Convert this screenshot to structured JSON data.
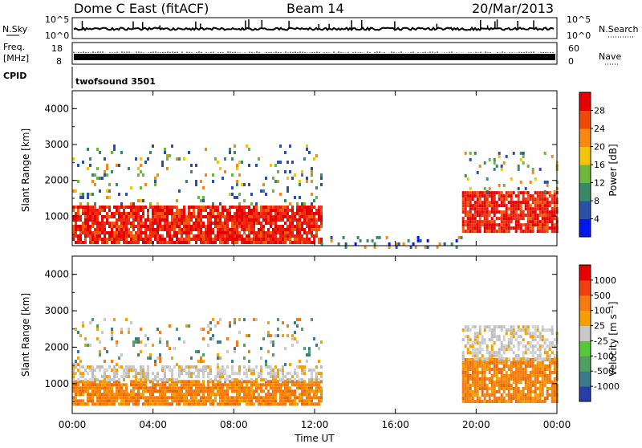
{
  "header": {
    "title": "Dome C East (fitACF)",
    "beam": "Beam 14",
    "date": "20/Mar/2013"
  },
  "top_panels": {
    "nsky_label": "N.Sky",
    "nsky_ticks": [
      "10^5",
      "10^0"
    ],
    "nsearch_label": "N.Search",
    "nsearch_ticks": [
      "10^5",
      "10^0"
    ],
    "freq_label_1": "Freq.",
    "freq_label_2": "[MHz]",
    "freq_ticks": [
      "18",
      "8"
    ],
    "nave_label": "Nave",
    "nave_ticks": [
      "60",
      "0"
    ],
    "cpid_label": "CPID",
    "cpid_value": "twofsound 3501"
  },
  "chart_data": [
    {
      "type": "heatmap",
      "title": "",
      "xlabel": "Time UT",
      "ylabel": "Slant Range [km]",
      "xlim": [
        0,
        24
      ],
      "ylim": [
        180,
        4500
      ],
      "x_ticks": [
        "00:00",
        "04:00",
        "08:00",
        "12:00",
        "16:00",
        "20:00",
        "00:00"
      ],
      "y_ticks": [
        "1000",
        "2000",
        "3000",
        "4000"
      ],
      "colorbar": {
        "label": "Power [dB]",
        "ticks": [
          "4",
          "8",
          "12",
          "16",
          "20",
          "24",
          "28"
        ],
        "colors": [
          "#0018f0",
          "#2a50a8",
          "#3a8a6a",
          "#6bb83a",
          "#f2c40a",
          "#f68a10",
          "#f04a0a",
          "#e80000"
        ]
      },
      "echo_regions": [
        {
          "t0": 0,
          "t1": 12.3,
          "r0": 300,
          "r1": 1300,
          "level": "strong"
        },
        {
          "t0": 0,
          "t1": 12.3,
          "r0": 1300,
          "r1": 3000,
          "level": "scattered"
        },
        {
          "t0": 12.3,
          "t1": 19.3,
          "r0": 180,
          "r1": 450,
          "level": "sparse"
        },
        {
          "t0": 19.3,
          "t1": 24,
          "r0": 600,
          "r1": 1700,
          "level": "strong"
        },
        {
          "t0": 19.3,
          "t1": 24,
          "r0": 1700,
          "r1": 2800,
          "level": "scattered"
        }
      ]
    },
    {
      "type": "heatmap",
      "title": "",
      "xlabel": "Time UT",
      "ylabel": "Slant Range [km]",
      "xlim": [
        0,
        24
      ],
      "ylim": [
        180,
        4500
      ],
      "x_ticks": [
        "00:00",
        "04:00",
        "08:00",
        "12:00",
        "16:00",
        "20:00",
        "00:00"
      ],
      "y_ticks": [
        "1000",
        "2000",
        "3000",
        "4000"
      ],
      "colorbar": {
        "label": "Velocity [m s⁻¹]",
        "ticks": [
          "1000",
          "500",
          "100",
          "25",
          "-25",
          "-100",
          "-500",
          "-1000"
        ],
        "colors": [
          "#2a3ea8",
          "#3a7a8a",
          "#4fa060",
          "#56c83a",
          "#c8c8c8",
          "#f5a000",
          "#f57a10",
          "#f04010",
          "#e80000"
        ]
      },
      "echo_regions": [
        {
          "t0": 0,
          "t1": 12.3,
          "r0": 400,
          "r1": 1100,
          "level": "orange"
        },
        {
          "t0": 0,
          "t1": 12.3,
          "r0": 1100,
          "r1": 1500,
          "level": "grey"
        },
        {
          "t0": 0,
          "t1": 12.3,
          "r0": 1500,
          "r1": 2800,
          "level": "scattered"
        },
        {
          "t0": 19.3,
          "t1": 24,
          "r0": 500,
          "r1": 1700,
          "level": "orange"
        },
        {
          "t0": 19.3,
          "t1": 24,
          "r0": 1700,
          "r1": 2600,
          "level": "grey"
        }
      ]
    }
  ]
}
